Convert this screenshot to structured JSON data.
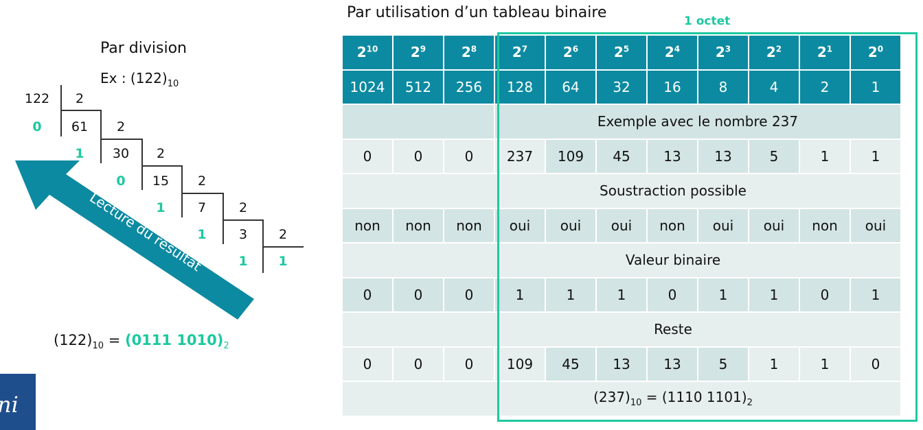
{
  "left": {
    "title": "Par division",
    "example_prefix": "Ex : (122)",
    "example_base": "10",
    "steps": [
      {
        "dividend": "122",
        "divisor": "2",
        "remainder": ""
      },
      {
        "dividend": "61",
        "divisor": "2",
        "remainder": "0"
      },
      {
        "dividend": "30",
        "divisor": "2",
        "remainder": "1"
      },
      {
        "dividend": "15",
        "divisor": "2",
        "remainder": "0"
      },
      {
        "dividend": "7",
        "divisor": "2",
        "remainder": "1"
      },
      {
        "dividend": "3",
        "divisor": "2",
        "remainder": "1"
      },
      {
        "dividend": "1",
        "divisor": "",
        "remainder": "1"
      }
    ],
    "final_quotient": "1",
    "arrow_label": "Lecture du résultat",
    "result": {
      "lhs": "(122)",
      "lhs_base": "10",
      "eq": " = ",
      "rhs": "(0111 1010)",
      "rhs_base": "2"
    }
  },
  "right": {
    "title": "Par utilisation d’un tableau binaire",
    "octet_label": "1 octet",
    "powers": [
      "10",
      "9",
      "8",
      "7",
      "6",
      "5",
      "4",
      "3",
      "2",
      "1",
      "0"
    ],
    "power_base": "2",
    "values": [
      "1024",
      "512",
      "256",
      "128",
      "64",
      "32",
      "16",
      "8",
      "4",
      "2",
      "1"
    ],
    "example_title": "Exemple avec le nombre 237",
    "numbers": [
      "0",
      "0",
      "0",
      "237",
      "109",
      "45",
      "13",
      "13",
      "5",
      "1",
      "1"
    ],
    "subtraction_title": "Soustraction possible",
    "subtraction": [
      "non",
      "non",
      "non",
      "oui",
      "oui",
      "oui",
      "non",
      "oui",
      "oui",
      "non",
      "oui"
    ],
    "binary_title": "Valeur binaire",
    "binary": [
      "0",
      "0",
      "0",
      "1",
      "1",
      "1",
      "0",
      "1",
      "1",
      "0",
      "1"
    ],
    "rest_title": "Reste",
    "rest": [
      "0",
      "0",
      "0",
      "109",
      "45",
      "13",
      "13",
      "5",
      "1",
      "1",
      "0"
    ],
    "summary": {
      "lhs": "(237)",
      "lhs_base": "10",
      "eq": " = ",
      "rhs": "(1110 1101)",
      "rhs_base": "2"
    }
  },
  "colors": {
    "teal": "#0c8aa1",
    "green": "#1ec8a0",
    "row_dark": "#d2e4e3",
    "row_light": "#e7efee"
  },
  "logo_text": "ni"
}
